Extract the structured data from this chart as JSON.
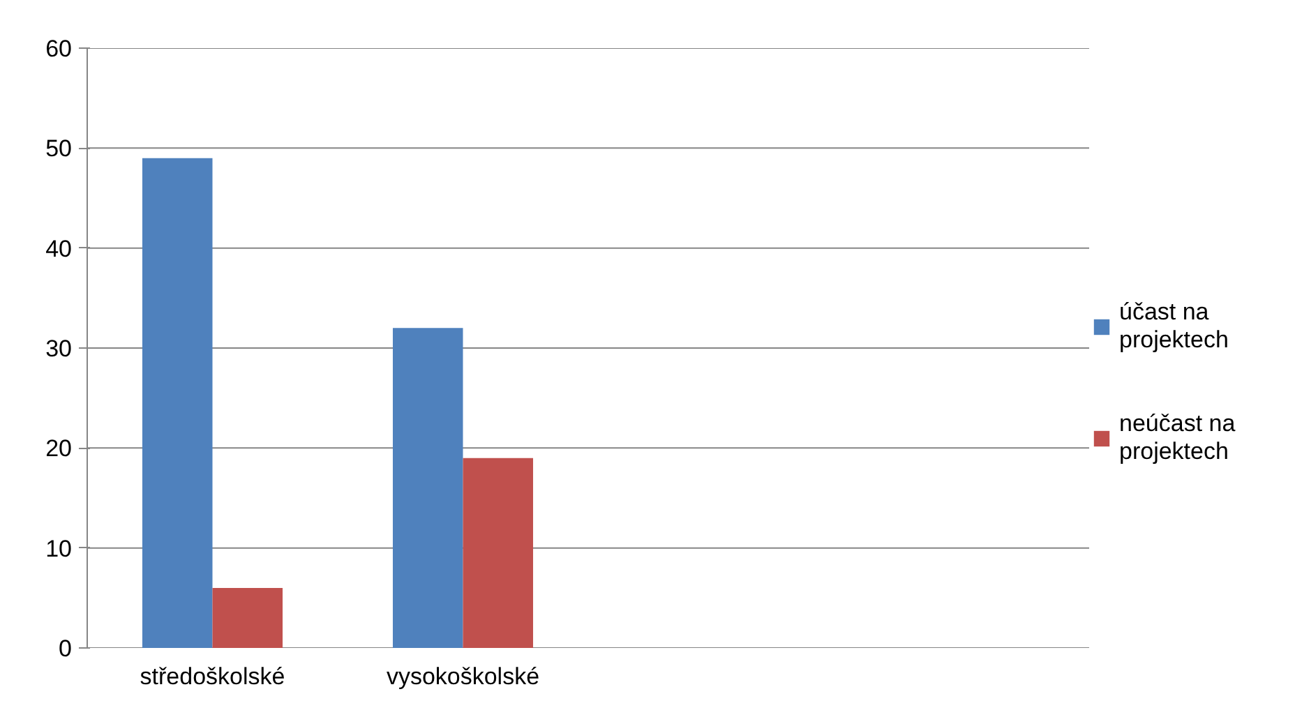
{
  "chart_data": {
    "type": "bar",
    "categories": [
      "středoškolské",
      "vysokoškolské",
      null,
      null
    ],
    "series": [
      {
        "name": "účast na projektech",
        "color": "#4f81bd",
        "values": [
          49,
          32,
          null,
          null
        ]
      },
      {
        "name": "neúčast na projektech",
        "color": "#c0504d",
        "values": [
          6,
          19,
          null,
          null
        ]
      }
    ],
    "ylim": [
      0,
      60
    ],
    "yticks": [
      0,
      10,
      20,
      30,
      40,
      50,
      60
    ],
    "grid": "y",
    "legend": "right"
  }
}
